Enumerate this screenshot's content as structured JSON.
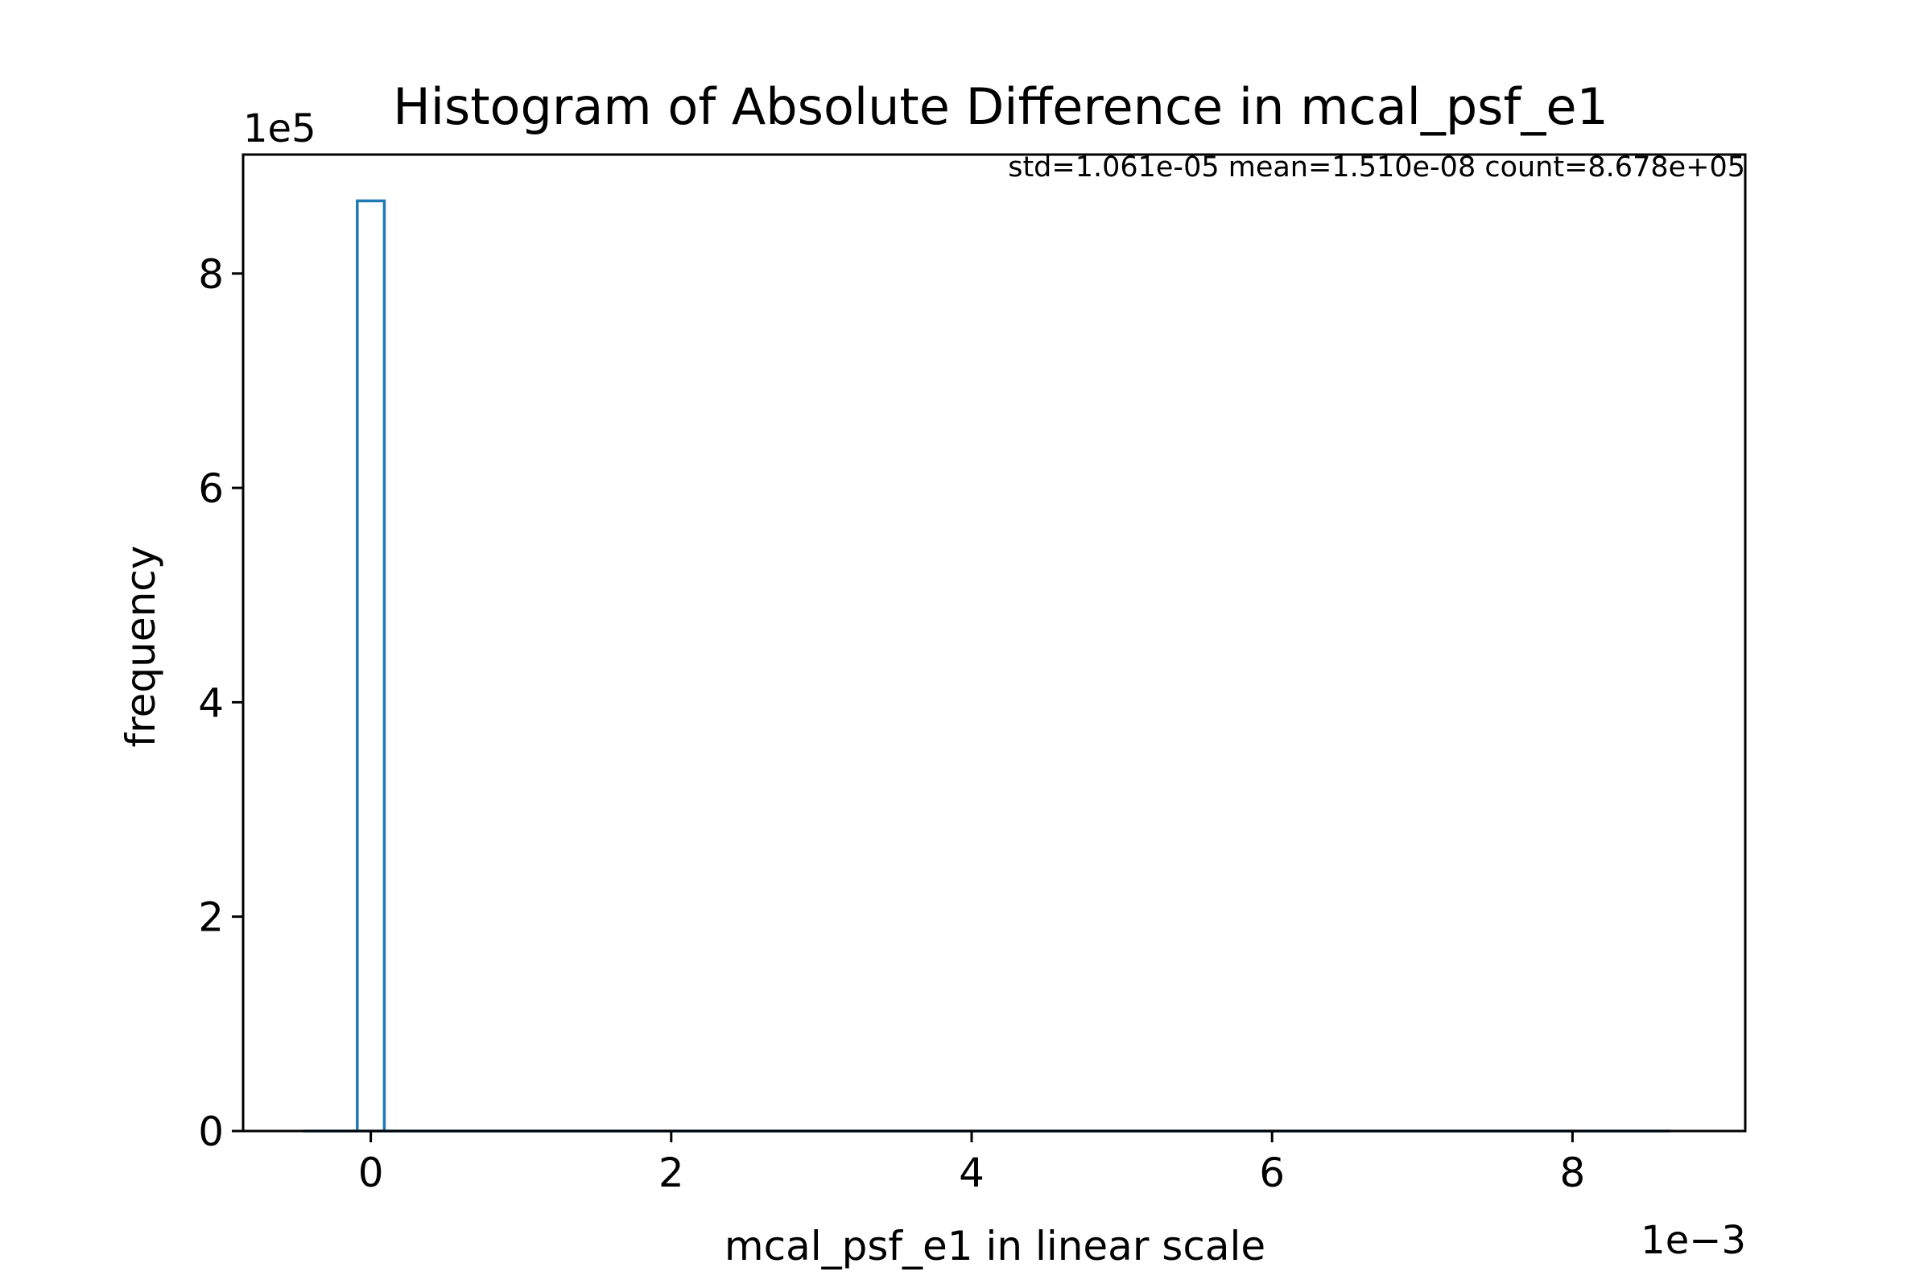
{
  "chart_data": {
    "type": "bar",
    "title": "Histogram of Absolute Difference in mcal_psf_e1",
    "xlabel": "mcal_psf_e1 in linear scale",
    "ylabel": "frequency",
    "annotation": "std=1.061e-05 mean=1.510e-08 count=8.678e+05",
    "x_offset_label": "1e−3",
    "y_offset_label": "1e5",
    "x_multiplier": 0.001,
    "y_multiplier": 100000,
    "xlim": [
      -0.00085,
      0.00915
    ],
    "ylim": [
      0,
      911000
    ],
    "x_ticks": [
      0,
      2,
      4,
      6,
      8
    ],
    "y_ticks": [
      0,
      2,
      4,
      6,
      8
    ],
    "bins": [
      {
        "x0": -9e-05,
        "x1": 9e-05,
        "count": 867800
      }
    ],
    "baseline_range": [
      -0.00045,
      0.00865
    ],
    "grid": false,
    "colors": {
      "bar_edge": "#1f77b4",
      "axes": "#000000",
      "background": "#ffffff"
    }
  }
}
